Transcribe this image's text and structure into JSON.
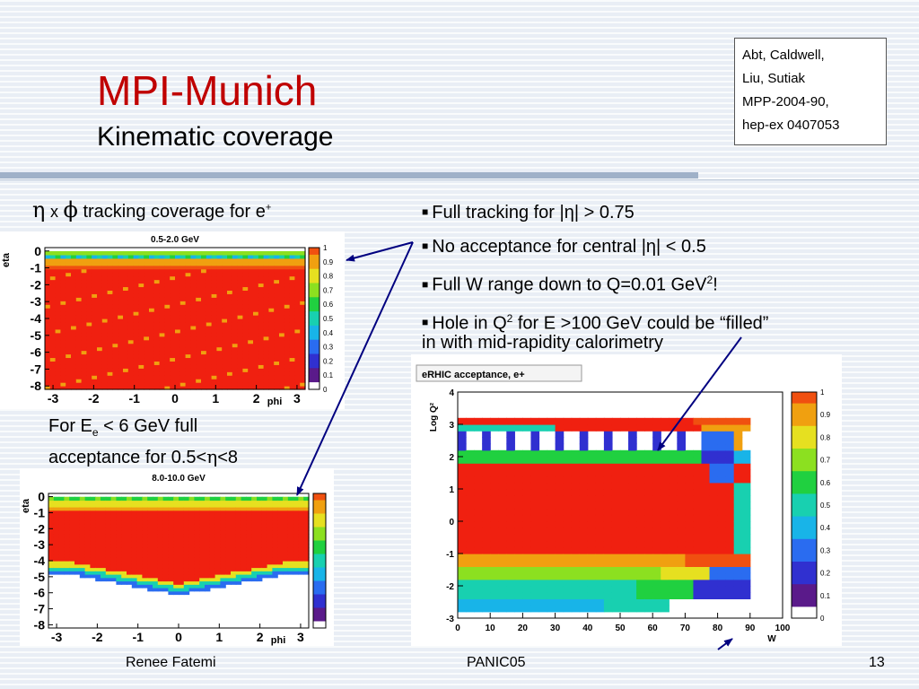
{
  "slide": {
    "title": "MPI-Munich",
    "subtitle": "Kinematic coverage",
    "reference": [
      "Abt, Caldwell,",
      "Liu, Sutiak",
      "MPP-2004-90,",
      "hep-ex 0407053"
    ],
    "caption_top": {
      "eta": "η",
      "times": "x",
      "phi": "ϕ",
      "text": "tracking coverage for e",
      "sup": "+"
    },
    "caption_bottom": {
      "line1_pre": "For E",
      "line1_sub": "e",
      "line1_post": " < 6 GeV full",
      "line2_pre": "acceptance for  0.5<",
      "line2_eta": "η",
      "line2_post": "<8"
    },
    "bullets": [
      {
        "text": "Full tracking for |η| > 0.75"
      },
      {
        "text": "No acceptance for central |η| < 0.5"
      },
      {
        "pre": "Full W range down to Q=0.01 GeV",
        "sup": "2",
        "post": "!"
      },
      {
        "pre": "Hole in Q",
        "sup": "2",
        "post": " for E >100 GeV could be “filled”",
        "cont": "in with  mid-rapidity calorimetry"
      }
    ],
    "footer": {
      "author": "Renee Fatemi",
      "conference": "PANIC05",
      "page": "13"
    },
    "colors": {
      "title": "#c00000",
      "arrow": "#000080"
    }
  },
  "chart_data": [
    {
      "type": "heatmap",
      "title": "0.5-2.0 GeV",
      "xlabel": "phi",
      "ylabel": "eta",
      "xlim": [
        -3.2,
        3.2
      ],
      "ylim": [
        -8.2,
        0.2
      ],
      "x_ticks": [
        "-3",
        "-2",
        "-1",
        "0",
        "1",
        "2",
        "3"
      ],
      "y_ticks": [
        "0",
        "-1",
        "-2",
        "-3",
        "-4",
        "-5",
        "-6",
        "-7",
        "-8"
      ],
      "colorbar_ticks": [
        "1",
        "0.9",
        "0.8",
        "0.7",
        "0.6",
        "0.5",
        "0.4",
        "0.3",
        "0.2",
        "0.1",
        "0"
      ],
      "description": "acceptance ~1 (red) for -8 < eta < -1; transition band near eta = -0.5; zero above"
    },
    {
      "type": "heatmap",
      "title": "8.0-10.0 GeV",
      "xlabel": "phi",
      "ylabel": "eta",
      "xlim": [
        -3.2,
        3.2
      ],
      "ylim": [
        -8.2,
        0.2
      ],
      "x_ticks": [
        "-3",
        "-2",
        "-1",
        "0",
        "1",
        "2",
        "3"
      ],
      "y_ticks": [
        "0",
        "-1",
        "-2",
        "-3",
        "-4",
        "-5",
        "-6",
        "-7",
        "-8"
      ],
      "description": "acceptance ~1 for -4.5 < eta < -0.5, lower edge curving down to eta ~ -6 near phi = 0"
    },
    {
      "type": "heatmap",
      "title": "eRHIC acceptance, e+",
      "xlabel": "W",
      "ylabel": "Log Q²",
      "xlim": [
        0,
        100
      ],
      "ylim": [
        -3,
        4
      ],
      "x_ticks": [
        "0",
        "10",
        "20",
        "30",
        "40",
        "50",
        "60",
        "70",
        "80",
        "90",
        "100"
      ],
      "y_ticks": [
        "4",
        "3",
        "2",
        "1",
        "0",
        "-1",
        "-2",
        "-3"
      ],
      "colorbar_ticks": [
        "1",
        "0.9",
        "0.8",
        "0.7",
        "0.6",
        "0.5",
        "0.4",
        "0.3",
        "0.2",
        "0.1",
        "0"
      ],
      "description": "full acceptance over most of the W–Q² plane; hole at Log Q² ≈ 2–3 for W > 75"
    }
  ]
}
